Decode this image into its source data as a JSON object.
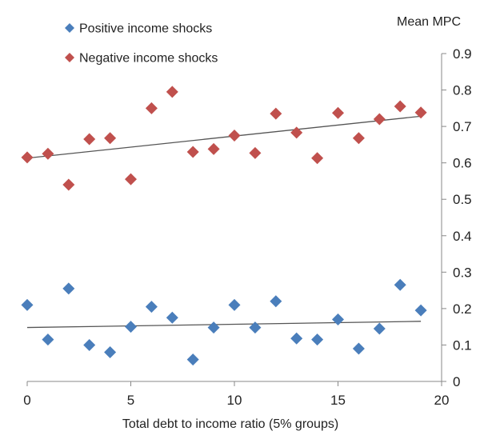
{
  "chart_data": {
    "type": "scatter",
    "title": "",
    "xlabel": "Total debt to income ratio (5% groups)",
    "ylabel": "Mean MPC",
    "xlim": [
      0,
      20
    ],
    "ylim": [
      0,
      0.9
    ],
    "x_ticks": [
      "0",
      "5",
      "10",
      "15",
      "20"
    ],
    "y_ticks": [
      "0",
      "0.1",
      "0.2",
      "0.3",
      "0.4",
      "0.5",
      "0.6",
      "0.7",
      "0.8",
      "0.9"
    ],
    "y_axis_side": "right",
    "grid": false,
    "legend_position": "top-left",
    "series": [
      {
        "name": "Positive income shocks",
        "color": "#4a7ebb",
        "marker": "diamond",
        "x": [
          0,
          1,
          2,
          3,
          4,
          5,
          6,
          7,
          8,
          9,
          10,
          11,
          12,
          13,
          14,
          15,
          16,
          17,
          18,
          19
        ],
        "y": [
          0.21,
          0.115,
          0.255,
          0.1,
          0.08,
          0.15,
          0.205,
          0.175,
          0.06,
          0.148,
          0.21,
          0.148,
          0.22,
          0.118,
          0.115,
          0.17,
          0.09,
          0.145,
          0.265,
          0.195
        ],
        "trendline": [
          [
            0,
            0.148
          ],
          [
            19,
            0.165
          ]
        ]
      },
      {
        "name": "Negative income shocks",
        "color": "#c0504d",
        "marker": "diamond",
        "x": [
          0,
          1,
          2,
          3,
          4,
          5,
          6,
          7,
          8,
          9,
          10,
          11,
          12,
          13,
          14,
          15,
          16,
          17,
          18,
          19
        ],
        "y": [
          0.615,
          0.625,
          0.54,
          0.665,
          0.668,
          0.555,
          0.75,
          0.795,
          0.63,
          0.638,
          0.675,
          0.627,
          0.735,
          0.683,
          0.613,
          0.737,
          0.668,
          0.72,
          0.755,
          0.738
        ],
        "trendline": [
          [
            0,
            0.613
          ],
          [
            19,
            0.728
          ]
        ]
      }
    ]
  }
}
